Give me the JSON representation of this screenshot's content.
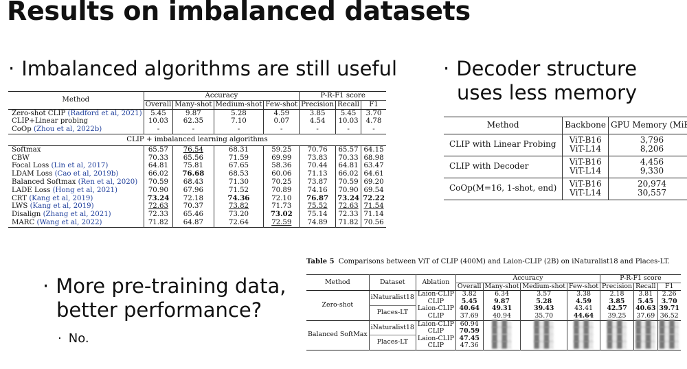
{
  "slide": {
    "title": "Results on imbalanced datasets",
    "bullets": {
      "b1": "Imbalanced algorithms are still useful",
      "b2_line1": "Decoder structure",
      "b2_line2": "uses less memory",
      "b3_line1": "More pre-training data,",
      "b3_line2": "better performance?",
      "b3_sub": "No.",
      "dot": "·"
    }
  },
  "table1": {
    "head": {
      "method": "Method",
      "accuracy": "Accuracy",
      "prf": "P-R-F1 score",
      "cols": [
        "Overall",
        "Many-shot",
        "Medium-shot",
        "Few-shot",
        "Precision",
        "Recall",
        "F1"
      ]
    },
    "section": "CLIP + imbalanced learning algorithms",
    "rows": [
      {
        "name": "Zero-shot CLIP ",
        "cite": "(Radford et al, 2021)",
        "v": [
          "5.45",
          "9.87",
          "5.28",
          "4.59",
          "3.85",
          "5.45",
          "3.70"
        ]
      },
      {
        "name": "CLIP+Linear probing",
        "cite": "",
        "v": [
          "10.03",
          "62.35",
          "7.10",
          "0.07",
          "4.54",
          "10.03",
          "4.78"
        ]
      },
      {
        "name": "CoOp ",
        "cite": "(Zhou et al, 2022b)",
        "v": [
          "-",
          "-",
          "-",
          "-",
          "-",
          "-",
          "-"
        ]
      },
      {
        "name": "Softmax",
        "cite": "",
        "v": [
          "65.57",
          "76.54",
          "68.31",
          "59.25",
          "70.76",
          "65.57",
          "64.15"
        ]
      },
      {
        "name": "CBW",
        "cite": "",
        "v": [
          "70.33",
          "65.56",
          "71.59",
          "69.99",
          "73.83",
          "70.33",
          "68.98"
        ]
      },
      {
        "name": "Focal Loss ",
        "cite": "(Lin et al, 2017)",
        "v": [
          "64.81",
          "75.81",
          "67.65",
          "58.36",
          "70.44",
          "64.81",
          "63.47"
        ]
      },
      {
        "name": "LDAM Loss ",
        "cite": "(Cao et al, 2019b)",
        "v": [
          "66.02",
          "76.68",
          "68.53",
          "60.06",
          "71.13",
          "66.02",
          "64.61"
        ]
      },
      {
        "name": "Balanced Softmax ",
        "cite": "(Ren et al, 2020)",
        "v": [
          "70.59",
          "68.43",
          "71.30",
          "70.25",
          "73.87",
          "70.59",
          "69.20"
        ]
      },
      {
        "name": "LADE Loss ",
        "cite": "(Hong et al, 2021)",
        "v": [
          "70.90",
          "67.96",
          "71.52",
          "70.89",
          "74.16",
          "70.90",
          "69.54"
        ]
      },
      {
        "name": "CRT ",
        "cite": "(Kang et al, 2019)",
        "v": [
          "73.24",
          "72.18",
          "74.36",
          "72.10",
          "76.87",
          "73.24",
          "72.22"
        ]
      },
      {
        "name": "LWS ",
        "cite": "(Kang et al, 2019)",
        "v": [
          "72.63",
          "70.37",
          "73.82",
          "71.73",
          "75.52",
          "72.63",
          "71.54"
        ]
      },
      {
        "name": "Disalign ",
        "cite": "(Zhang et al, 2021)",
        "v": [
          "72.33",
          "65.46",
          "73.20",
          "73.02",
          "75.14",
          "72.33",
          "71.14"
        ]
      },
      {
        "name": "MARC ",
        "cite": "(Wang et al, 2022)",
        "v": [
          "71.82",
          "64.87",
          "72.64",
          "72.59",
          "74.89",
          "71.82",
          "70.56"
        ]
      }
    ]
  },
  "table2": {
    "head": {
      "method": "Method",
      "backbone": "Backbone",
      "mem": "GPU Memory (MiB)"
    },
    "rows": [
      {
        "method": "CLIP with Linear Probing",
        "b1": "ViT-B16",
        "b2": "ViT-L14",
        "m1": "3,796",
        "m2": "8,206"
      },
      {
        "method": "CLIP with Decoder",
        "b1": "ViT-B16",
        "b2": "ViT-L14",
        "m1": "4,456",
        "m2": "9,330"
      },
      {
        "method": "CoOp(M=16, 1-shot, end)",
        "b1": "ViT-B16",
        "b2": "ViT-L14",
        "m1": "20,974",
        "m2": "30,557"
      }
    ]
  },
  "table3": {
    "caption_label": "Table 5",
    "caption": "Comparisons between ViT of CLIP (400M) and Laion-CLIP (2B) on iNaturalist18 and Places-LT.",
    "head": {
      "method": "Method",
      "dataset": "Dataset",
      "ablation": "Ablation",
      "accuracy": "Accuracy",
      "prf": "P-R-F1 score",
      "cols": [
        "Overall",
        "Many-shot",
        "Medium-shot",
        "Few-shot",
        "Precision",
        "Recall",
        "F1"
      ]
    },
    "methods": [
      "Zero-shot",
      "Balanced SoftMax"
    ],
    "datasets": [
      "iNaturalist18",
      "Places-LT"
    ],
    "ablations": [
      "Laion-CLIP",
      "CLIP"
    ],
    "zs": [
      [
        "3.82",
        "6.34",
        "3.57",
        "3.38",
        "2.18",
        "3.81",
        "2.26"
      ],
      [
        "5.45",
        "9.87",
        "5.28",
        "4.59",
        "3.85",
        "5.45",
        "3.70"
      ],
      [
        "40.64",
        "49.31",
        "39.43",
        "43.41",
        "42.57",
        "40.63",
        "39.71"
      ],
      [
        "37.69",
        "40.94",
        "35.70",
        "44.64",
        "39.25",
        "37.69",
        "36.52"
      ]
    ],
    "bs_overall": [
      "60.94",
      "70.59",
      "47.45",
      "47.36"
    ]
  }
}
